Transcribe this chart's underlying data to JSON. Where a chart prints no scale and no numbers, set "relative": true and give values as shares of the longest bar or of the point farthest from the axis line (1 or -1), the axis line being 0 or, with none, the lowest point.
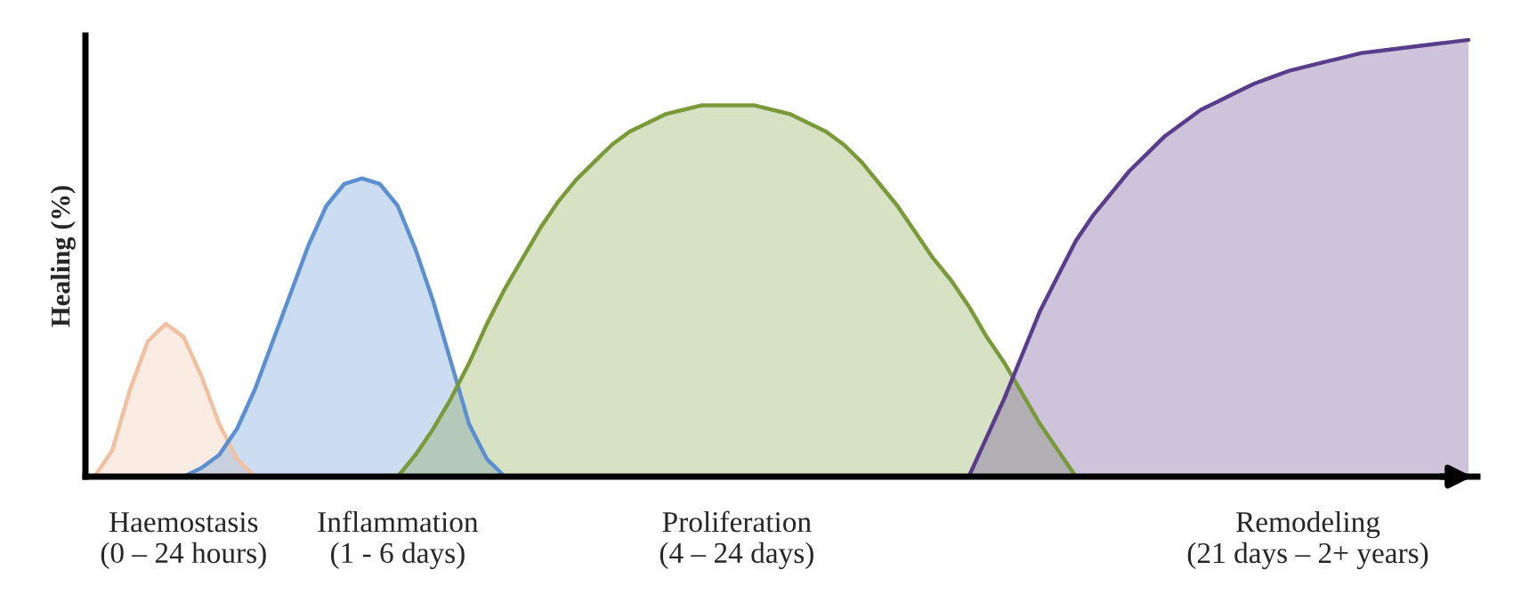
{
  "chart_data": {
    "type": "area",
    "relative": true,
    "ylabel": "Healing (%)",
    "categories": [
      null,
      null,
      null,
      null,
      null,
      "Haemostasis\n(0 – 24 hours)",
      null,
      null,
      null,
      null,
      null,
      null,
      null,
      null,
      null,
      null,
      null,
      "Inflammation\n(1 - 6 days)",
      null,
      null,
      null,
      null,
      null,
      null,
      null,
      null,
      null,
      null,
      null,
      null,
      null,
      null,
      null,
      null,
      null,
      null,
      "Proliferation\n(4 – 24 days)",
      null,
      null,
      null,
      null,
      null,
      null,
      null,
      null,
      null,
      null,
      null,
      null,
      null,
      null,
      null,
      null,
      null,
      null,
      null,
      null,
      null,
      null,
      null,
      null,
      null,
      null,
      null,
      null,
      null,
      null,
      null,
      "Remodeling\n(21 days – 2+ years)",
      null,
      null,
      null,
      null,
      null,
      null,
      null,
      null,
      null
    ],
    "tick_labels": "x",
    "grid": false,
    "legend": false,
    "series": [
      {
        "color": "#f0c0a0",
        "values": [
          0,
          0.06,
          0.2,
          0.31,
          0.35,
          0.32,
          0.23,
          0.12,
          0.04,
          0,
          null,
          null,
          null,
          null,
          null,
          null,
          null,
          null,
          null,
          null,
          null,
          null,
          null,
          null,
          null,
          null,
          null,
          null,
          null,
          null,
          null,
          null,
          null,
          null,
          null,
          null,
          null,
          null,
          null,
          null,
          null,
          null,
          null,
          null,
          null,
          null,
          null,
          null,
          null,
          null,
          null,
          null,
          null,
          null,
          null,
          null,
          null,
          null,
          null,
          null,
          null,
          null,
          null,
          null,
          null,
          null,
          null,
          null,
          null,
          null,
          null,
          null,
          null,
          null,
          null,
          null,
          null,
          null
        ]
      },
      {
        "color": "#5b8fcf",
        "values": [
          null,
          null,
          null,
          null,
          null,
          0,
          0.02,
          0.05,
          0.11,
          0.2,
          0.31,
          0.42,
          0.53,
          0.62,
          0.67,
          0.683,
          0.67,
          0.62,
          0.52,
          0.4,
          0.26,
          0.12,
          0.04,
          0,
          null,
          null,
          null,
          null,
          null,
          null,
          null,
          null,
          null,
          null,
          null,
          null,
          null,
          null,
          null,
          null,
          null,
          null,
          null,
          null,
          null,
          null,
          null,
          null,
          null,
          null,
          null,
          null,
          null,
          null,
          null,
          null,
          null,
          null,
          null,
          null,
          null,
          null,
          null,
          null,
          null,
          null,
          null,
          null,
          null,
          null,
          null,
          null,
          null,
          null,
          null,
          null,
          null,
          null
        ]
      },
      {
        "color": "#7a9a3a",
        "values": [
          null,
          null,
          null,
          null,
          null,
          null,
          null,
          null,
          null,
          null,
          null,
          null,
          null,
          null,
          null,
          null,
          null,
          0,
          0.05,
          0.11,
          0.18,
          0.26,
          0.35,
          0.43,
          0.5,
          0.57,
          0.63,
          0.68,
          0.72,
          0.76,
          0.79,
          0.81,
          0.83,
          0.84,
          0.85,
          0.85,
          0.85,
          0.85,
          0.84,
          0.83,
          0.81,
          0.79,
          0.76,
          0.72,
          0.67,
          0.62,
          0.56,
          0.5,
          0.45,
          0.39,
          0.32,
          0.26,
          0.19,
          0.12,
          0.06,
          0,
          null,
          null,
          null,
          null,
          null,
          null,
          null,
          null,
          null,
          null,
          null,
          null,
          null,
          null,
          null,
          null,
          null,
          null,
          null,
          null,
          null,
          null
        ]
      },
      {
        "color": "#5a3d8a",
        "values": [
          null,
          null,
          null,
          null,
          null,
          null,
          null,
          null,
          null,
          null,
          null,
          null,
          null,
          null,
          null,
          null,
          null,
          null,
          null,
          null,
          null,
          null,
          null,
          null,
          null,
          null,
          null,
          null,
          null,
          null,
          null,
          null,
          null,
          null,
          null,
          null,
          null,
          null,
          null,
          null,
          null,
          null,
          null,
          null,
          null,
          null,
          null,
          null,
          null,
          0,
          0.09,
          0.18,
          0.28,
          0.38,
          0.46,
          0.54,
          0.6,
          0.65,
          0.7,
          0.74,
          0.78,
          0.81,
          0.84,
          0.86,
          0.88,
          0.9,
          0.915,
          0.93,
          0.94,
          0.95,
          0.96,
          0.97,
          0.975,
          0.98,
          0.985,
          0.99,
          0.995,
          1.0
        ]
      }
    ]
  }
}
